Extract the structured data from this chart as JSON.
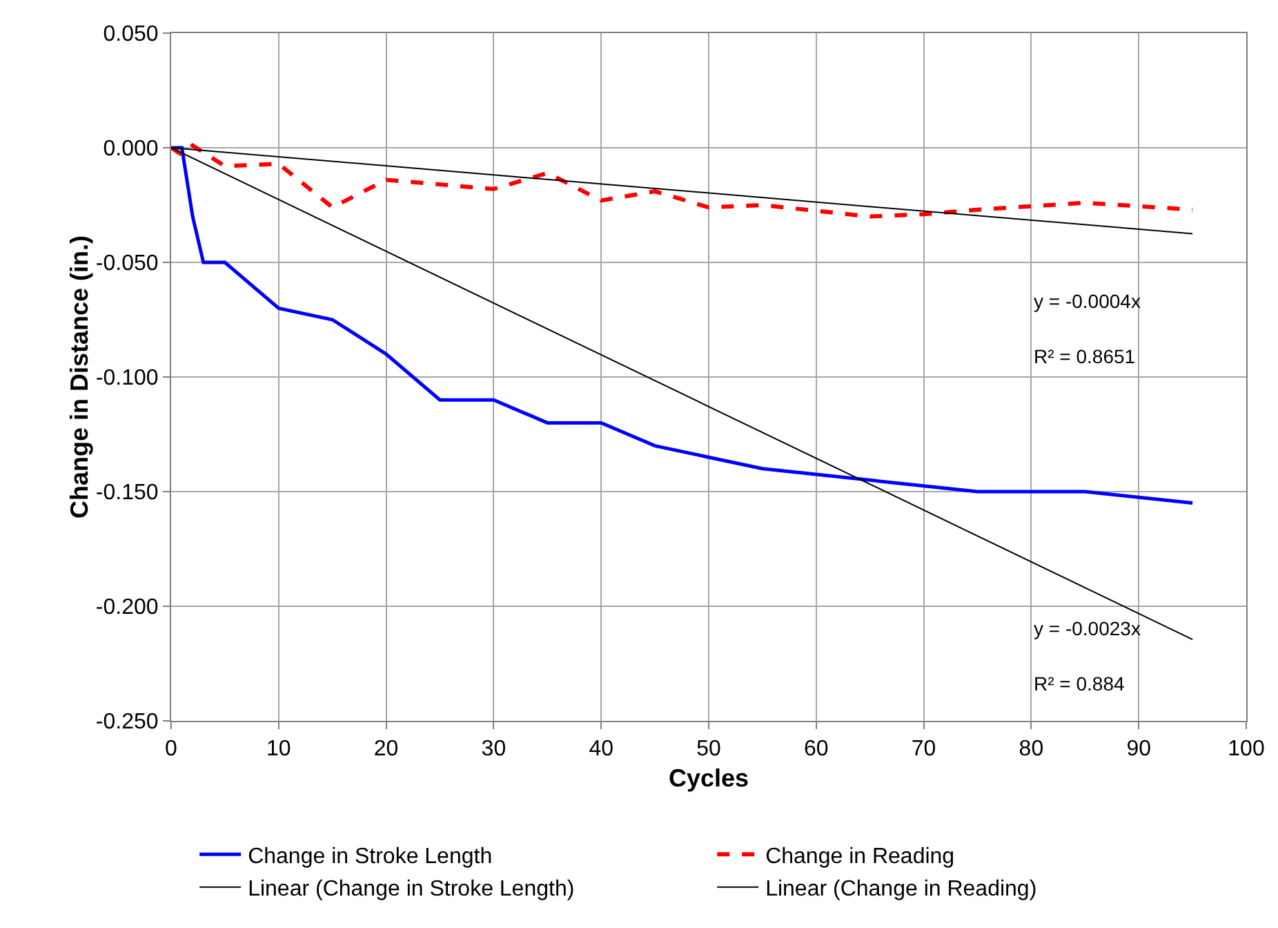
{
  "chart_data": {
    "type": "line",
    "xlabel": "Cycles",
    "ylabel": "Change in Distance (in.)",
    "series": [
      {
        "name": "Change in Stroke Length",
        "color": "#0000ff",
        "line_style": "solid",
        "x": [
          0,
          1,
          2,
          3,
          5,
          10,
          15,
          20,
          25,
          30,
          35,
          40,
          45,
          50,
          55,
          75,
          85,
          95
        ],
        "values": [
          0,
          0,
          -0.03,
          -0.05,
          -0.05,
          -0.07,
          -0.075,
          -0.09,
          -0.11,
          -0.11,
          -0.12,
          -0.12,
          -0.13,
          -0.135,
          -0.14,
          -0.15,
          -0.15,
          -0.155
        ]
      },
      {
        "name": "Change in Reading",
        "color": "#ff0000",
        "line_style": "dashed",
        "x": [
          0,
          1,
          2,
          5,
          10,
          15,
          20,
          25,
          30,
          35,
          40,
          45,
          50,
          55,
          65,
          70,
          75,
          85,
          95
        ],
        "values": [
          0,
          -0.003,
          0.001,
          -0.008,
          -0.007,
          -0.026,
          -0.014,
          -0.016,
          -0.018,
          -0.011,
          -0.023,
          -0.019,
          -0.026,
          -0.025,
          -0.03,
          -0.029,
          -0.027,
          -0.024,
          -0.027
        ]
      },
      {
        "name": "Linear (Change in Stroke Length)",
        "color": "#000000",
        "line_style": "solid",
        "x": [
          0,
          95
        ],
        "values": [
          0,
          -0.2145
        ]
      },
      {
        "name": "Linear (Change in Reading)",
        "color": "#000000",
        "line_style": "solid",
        "x": [
          0,
          95
        ],
        "values": [
          0,
          -0.0375
        ]
      }
    ],
    "xlim": [
      0,
      100
    ],
    "xticks": [
      0,
      10,
      20,
      30,
      40,
      50,
      60,
      70,
      80,
      90,
      100
    ],
    "ylim": [
      -0.25,
      0.05
    ],
    "yticks": [
      {
        "value": 0.05,
        "label": "0.050"
      },
      {
        "value": 0,
        "label": "0.000"
      },
      {
        "value": -0.05,
        "label": "-0.050"
      },
      {
        "value": -0.1,
        "label": "-0.100"
      },
      {
        "value": -0.15,
        "label": "-0.150"
      },
      {
        "value": -0.2,
        "label": "-0.200"
      },
      {
        "value": -0.25,
        "label": "-0.250"
      }
    ],
    "grid": true,
    "legend": "bottom",
    "marker": "none",
    "annotations": [
      "y = -0.0004x",
      "R² = 0.8651",
      "y = -0.0023x",
      "R² = 0.884"
    ]
  }
}
